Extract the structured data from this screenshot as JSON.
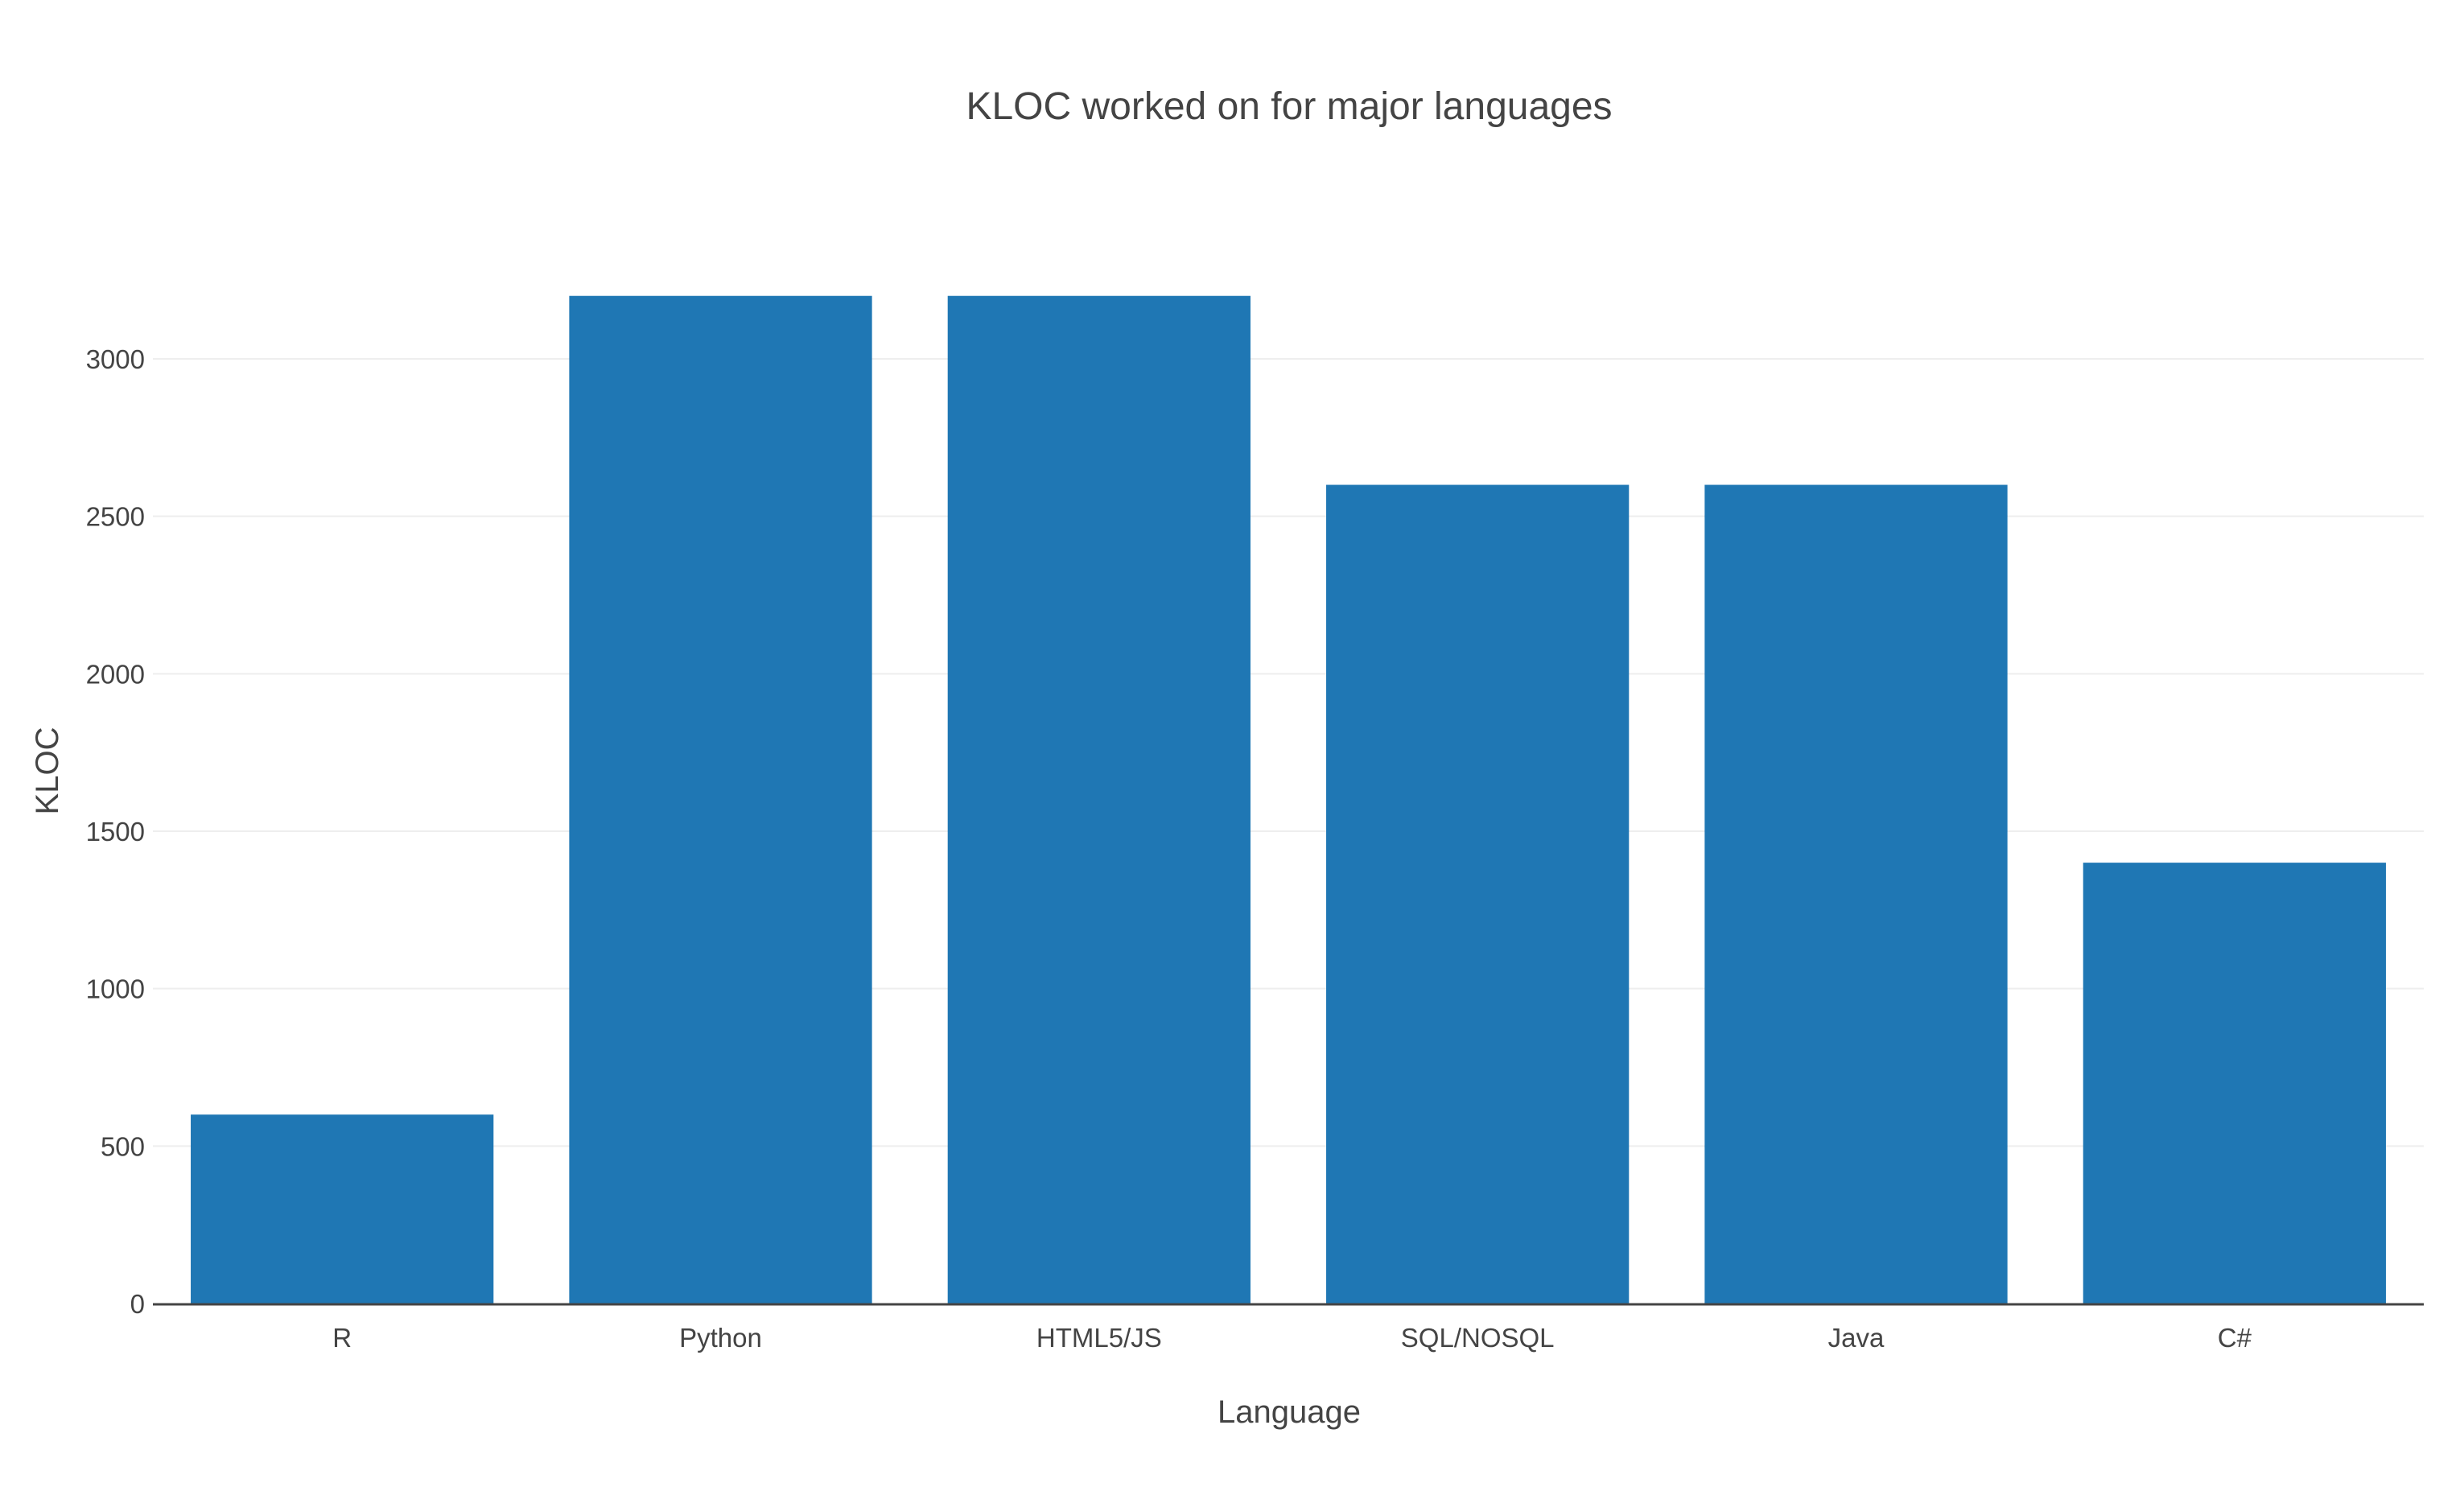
{
  "chart_data": {
    "type": "bar",
    "title": "KLOC worked on for major languages",
    "xlabel": "Language",
    "ylabel": "KLOC",
    "categories": [
      "R",
      "Python",
      "HTML5/JS",
      "SQL/NOSQL",
      "Java",
      "C#"
    ],
    "values": [
      600,
      3200,
      3200,
      2600,
      2600,
      1400
    ],
    "yticks": [
      0,
      500,
      1000,
      1500,
      2000,
      2500,
      3000
    ],
    "ytick_labels": [
      "0",
      "500",
      "1000",
      "1500",
      "2000",
      "2500",
      "3000"
    ],
    "ylim": [
      0,
      3200
    ],
    "grid": true,
    "legend": "none",
    "bar_color": "#1f77b4"
  }
}
